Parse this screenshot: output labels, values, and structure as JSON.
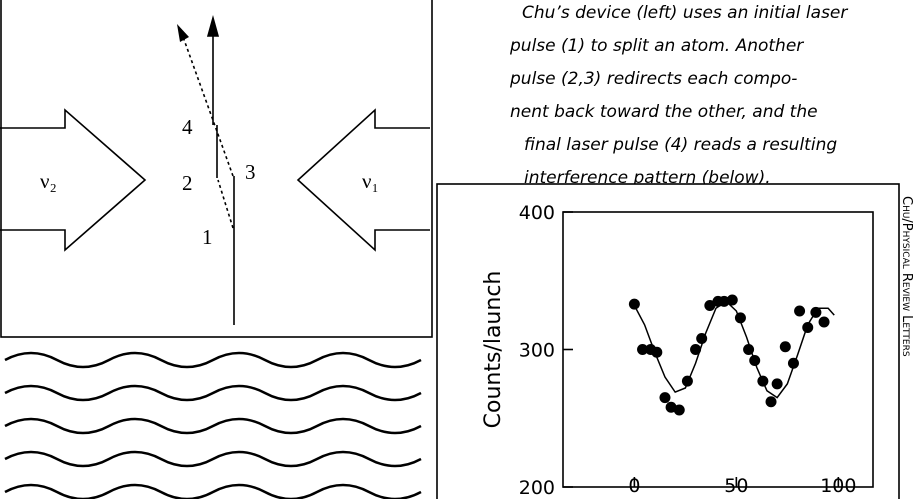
{
  "diagram": {
    "left_beam": "ν₂",
    "right_beam": "ν₁",
    "labels": [
      "1",
      "2",
      "3",
      "4"
    ]
  },
  "caption": {
    "lines": [
      "Chu’s device (left) uses an initial laser",
      "pulse (1) to split an atom. Another",
      "pulse (2,3) redirects each compo-",
      "nent back toward the other, and the",
      "final laser pulse (4) reads a resulting",
      "interference pattern (below)."
    ]
  },
  "credit": "Chu/Physical Review Letters",
  "chart_data": {
    "type": "scatter",
    "ylabel": "Counts/launch",
    "xlim": [
      -35,
      117
    ],
    "ylim": [
      200,
      400
    ],
    "xticks": [
      0,
      50,
      100
    ],
    "yticks": [
      200,
      300,
      400
    ],
    "series": [
      {
        "type": "scatter",
        "color": "#000000",
        "x": [
          0,
          4,
          8,
          11,
          15,
          18,
          22,
          26,
          30,
          33,
          37,
          41,
          44,
          48,
          52,
          56,
          59,
          63,
          67,
          70,
          74,
          78,
          81,
          85,
          89,
          93
        ],
        "values": [
          333,
          300,
          300,
          298,
          265,
          258,
          256,
          277,
          300,
          308,
          332,
          335,
          335,
          336,
          323,
          300,
          292,
          277,
          262,
          275,
          302,
          290,
          328,
          316,
          327,
          320
        ]
      },
      {
        "type": "line",
        "color": "#000000",
        "x": [
          0,
          5,
          10,
          15,
          20,
          25,
          30,
          35,
          40,
          45,
          50,
          55,
          60,
          65,
          70,
          75,
          80,
          85,
          90,
          95,
          98
        ],
        "values": [
          332,
          318,
          298,
          280,
          269,
          272,
          290,
          312,
          330,
          335,
          328,
          309,
          287,
          270,
          265,
          275,
          296,
          318,
          330,
          330,
          325
        ]
      }
    ]
  }
}
